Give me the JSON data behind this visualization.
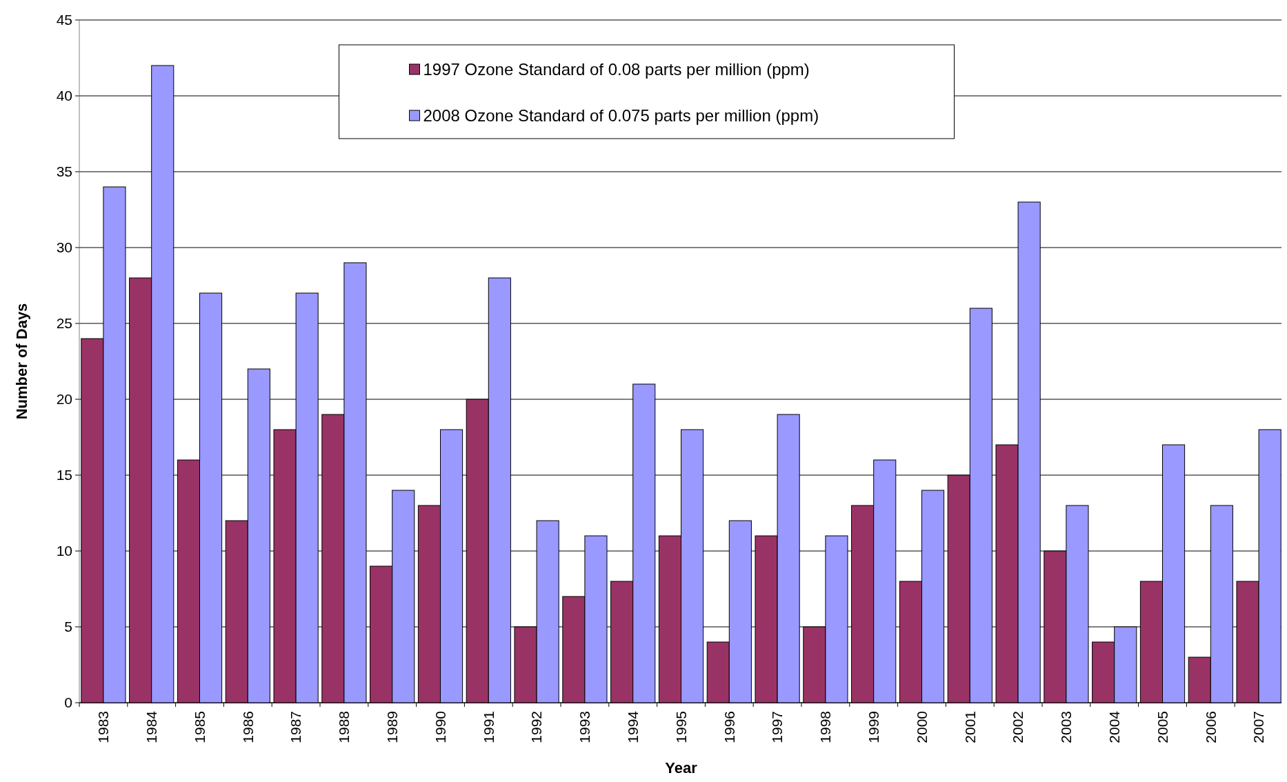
{
  "chart_data": {
    "type": "bar",
    "xlabel": "Year",
    "ylabel": "Number of Days",
    "categories": [
      "1983",
      "1984",
      "1985",
      "1986",
      "1987",
      "1988",
      "1989",
      "1990",
      "1991",
      "1992",
      "1993",
      "1994",
      "1995",
      "1996",
      "1997",
      "1998",
      "1999",
      "2000",
      "2001",
      "2002",
      "2003",
      "2004",
      "2005",
      "2006",
      "2007"
    ],
    "series": [
      {
        "name": "1997 Ozone Standard of 0.08 parts per million (ppm)",
        "color": "#993366",
        "values": [
          24,
          28,
          16,
          12,
          18,
          19,
          9,
          13,
          20,
          5,
          7,
          8,
          11,
          4,
          11,
          5,
          13,
          8,
          15,
          17,
          10,
          4,
          8,
          3,
          8
        ]
      },
      {
        "name": "2008 Ozone Standard of 0.075 parts per million (ppm)",
        "color": "#9999ff",
        "values": [
          34,
          42,
          27,
          22,
          27,
          29,
          14,
          18,
          28,
          12,
          11,
          21,
          18,
          12,
          19,
          11,
          16,
          14,
          26,
          33,
          13,
          5,
          17,
          13,
          18
        ]
      }
    ],
    "ylim": [
      0,
      45
    ],
    "yticks": [
      0,
      5,
      10,
      15,
      20,
      25,
      30,
      35,
      40,
      45
    ],
    "grid": "y",
    "legend": "top"
  }
}
